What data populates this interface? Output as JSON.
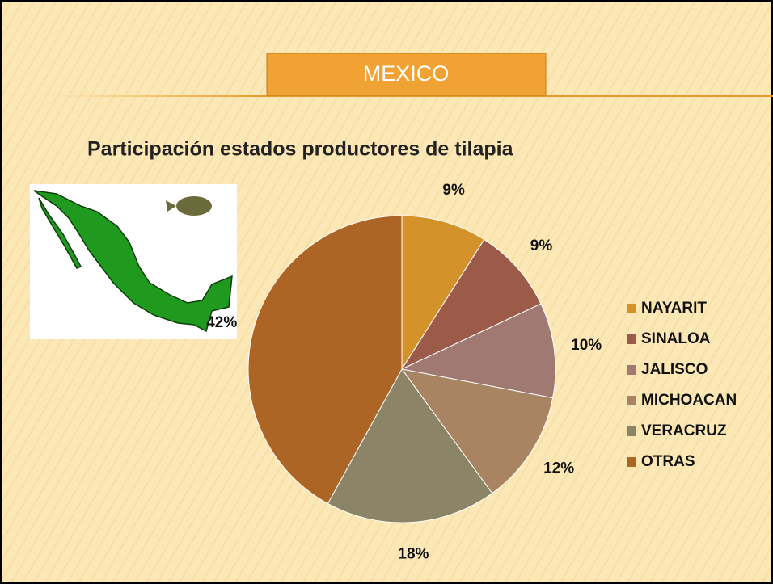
{
  "header": {
    "title": "MEXICO"
  },
  "chart_data": {
    "type": "pie",
    "title": "Participación estados productores de tilapia",
    "categories": [
      "NAYARIT",
      "SINALOA",
      "JALISCO",
      "MICHOACAN",
      "VERACRUZ",
      "OTRAS"
    ],
    "values": [
      9,
      9,
      10,
      12,
      18,
      42
    ],
    "value_labels": [
      "9%",
      "9%",
      "10%",
      "12%",
      "18%",
      "42%"
    ],
    "colors": [
      "#d4922a",
      "#9c5a48",
      "#a07a72",
      "#a98462",
      "#8c8466",
      "#ad6526"
    ],
    "legend": "right"
  }
}
